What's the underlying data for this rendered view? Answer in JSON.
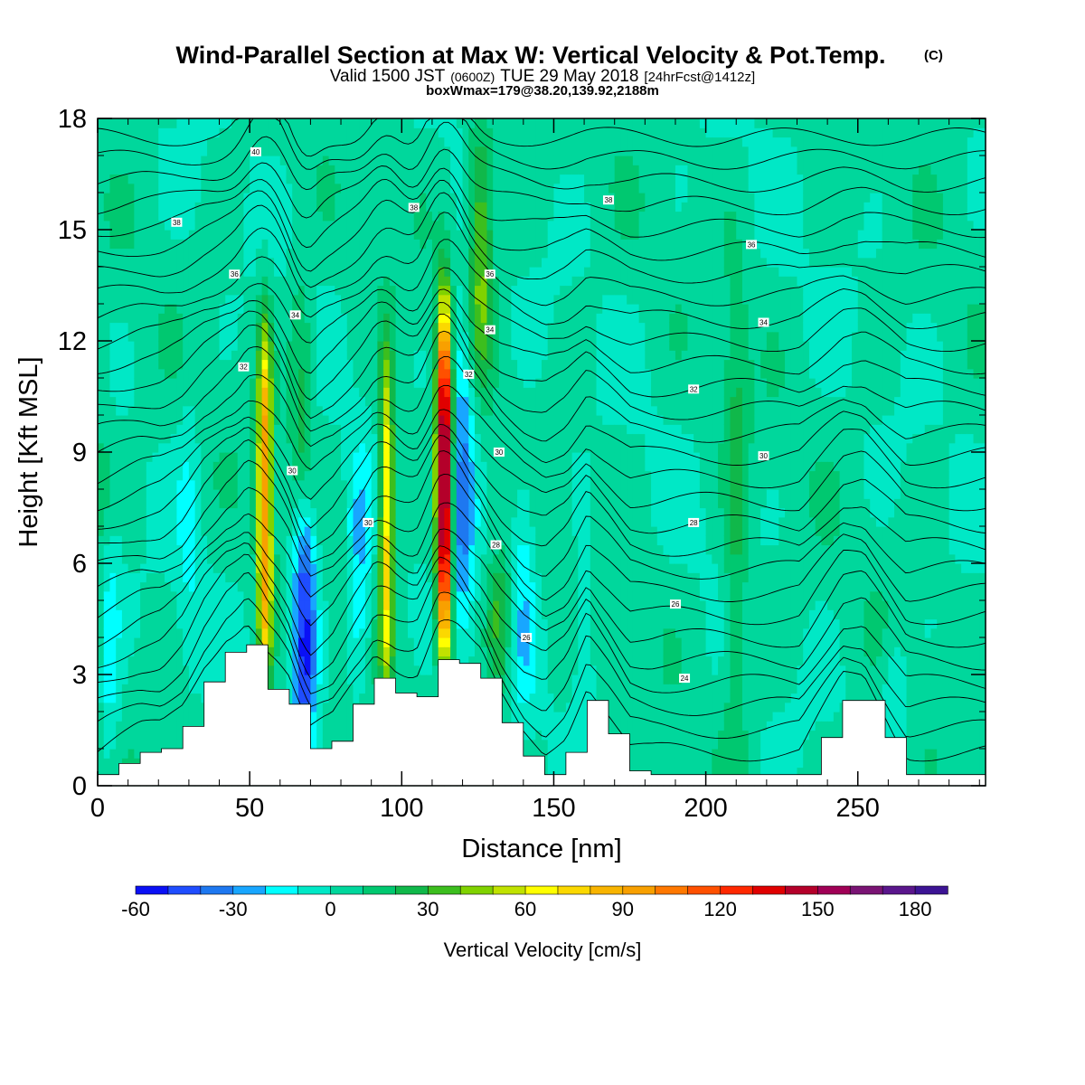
{
  "header": {
    "title": "Wind-Parallel Section at Max W: Vertical Velocity & Pot.Temp.",
    "title_suffix": "(C)",
    "valid_a": "Valid 1500 JST",
    "valid_b": "(0600Z)",
    "valid_c": "TUE 29 May 2018",
    "valid_d": "[24hrFcst@1412z]",
    "box": "boxWmax=179@38.20,139.92,2188m"
  },
  "chart_data": {
    "type": "heatmap",
    "xlabel": "Distance [nm]",
    "ylabel": "Height [Kft MSL]",
    "xlim": [
      0,
      292
    ],
    "ylim": [
      0,
      18
    ],
    "x_ticks": [
      "0",
      "50",
      "100",
      "150",
      "200",
      "250"
    ],
    "y_ticks": [
      "0",
      "3",
      "6",
      "9",
      "12",
      "15",
      "18"
    ],
    "colorbar": {
      "title": "Vertical Velocity [cm/s]",
      "tick_labels": [
        "-60",
        "-30",
        "0",
        "30",
        "60",
        "90",
        "120",
        "150",
        "180"
      ],
      "bounds": [
        -60,
        190
      ],
      "step": 10,
      "colors": [
        "#0a10f5",
        "#1f4dff",
        "#1e78f0",
        "#18a6ff",
        "#00ffff",
        "#00e8c6",
        "#00d79c",
        "#00c870",
        "#10b84a",
        "#3cbe1e",
        "#80d200",
        "#c0e200",
        "#ffff00",
        "#fbd800",
        "#f8b400",
        "#f8a000",
        "#ff7800",
        "#ff5000",
        "#ff2800",
        "#e00000",
        "#b4002a",
        "#a00056",
        "#7a1474",
        "#5a168c",
        "#3c1494"
      ]
    },
    "background_w": 3,
    "updrafts": [
      {
        "x": 55,
        "zmin": 2.5,
        "zmax": 12.4,
        "w": 95
      },
      {
        "x": 95,
        "zmin": 2.5,
        "zmax": 11.8,
        "w": 72
      },
      {
        "x": 114,
        "zmin": 3.5,
        "zmax": 12.9,
        "w": 175
      },
      {
        "x": 132,
        "zmin": 2.5,
        "zmax": 6.2,
        "w": 32
      },
      {
        "x": 126,
        "zmin": 11,
        "zmax": 18,
        "w": 40
      },
      {
        "x": 67,
        "zmin": 6,
        "zmax": 14,
        "w": 22
      },
      {
        "x": 1,
        "zmin": 0.3,
        "zmax": 10,
        "w": 20
      },
      {
        "x": 210,
        "zmin": 0.5,
        "zmax": 14,
        "w": 20
      }
    ],
    "downdrafts": [
      {
        "x": 68,
        "zmin": 1,
        "zmax": 8,
        "w": -58
      },
      {
        "x": 86,
        "zmin": 2.5,
        "zmax": 9,
        "w": -25
      },
      {
        "x": 120,
        "zmin": 4,
        "zmax": 13,
        "w": -35
      },
      {
        "x": 140,
        "zmin": 2,
        "zmax": 9,
        "w": -20
      },
      {
        "x": 3,
        "zmin": 0.5,
        "zmax": 7,
        "w": -32
      },
      {
        "x": 30,
        "zmin": 3,
        "zmax": 11,
        "w": -12
      },
      {
        "x": 160,
        "zmin": 1,
        "zmax": 7,
        "w": -12
      },
      {
        "x": 262,
        "zmin": 0.8,
        "zmax": 4,
        "w": -15
      }
    ],
    "terrain_x": [
      0,
      7,
      14,
      21,
      28,
      35,
      42,
      49,
      56,
      63,
      70,
      77,
      84,
      91,
      98,
      105,
      112,
      119,
      126,
      133,
      140,
      147,
      154,
      161,
      168,
      175,
      182,
      189,
      196,
      203,
      210,
      217,
      224,
      231,
      238,
      245,
      252,
      259,
      266,
      273,
      280,
      292
    ],
    "terrain_z": [
      0.3,
      0.6,
      0.9,
      1.0,
      1.6,
      2.8,
      3.6,
      3.8,
      2.6,
      2.2,
      1.0,
      1.2,
      2.2,
      2.9,
      2.5,
      2.4,
      3.4,
      3.3,
      2.9,
      1.7,
      0.8,
      0.3,
      0.9,
      2.3,
      1.4,
      0.4,
      0.3,
      0.3,
      0.3,
      0.3,
      0.3,
      0.3,
      0.3,
      0.3,
      1.3,
      2.3,
      2.3,
      1.3,
      0.3,
      0.3,
      0.3,
      0.3
    ],
    "isentropes": {
      "theta_base_surface": 18,
      "step": 1,
      "count": 28,
      "lifts": [
        {
          "x": 55,
          "amp": 1.2,
          "width": 8
        },
        {
          "x": 114,
          "amp": 1.5,
          "width": 8
        },
        {
          "x": 95,
          "amp": 0.8,
          "width": 7
        },
        {
          "x": 68,
          "amp": -0.6,
          "width": 6
        }
      ],
      "labels": [
        {
          "text": "40",
          "x": 52,
          "z": 17.1
        },
        {
          "text": "38",
          "x": 104,
          "z": 15.6
        },
        {
          "text": "38",
          "x": 168,
          "z": 15.8
        },
        {
          "text": "38",
          "x": 26,
          "z": 15.2
        },
        {
          "text": "36",
          "x": 45,
          "z": 13.8
        },
        {
          "text": "36",
          "x": 129,
          "z": 13.8
        },
        {
          "text": "36",
          "x": 215,
          "z": 14.6
        },
        {
          "text": "34",
          "x": 65,
          "z": 12.7
        },
        {
          "text": "34",
          "x": 129,
          "z": 12.3
        },
        {
          "text": "34",
          "x": 219,
          "z": 12.5
        },
        {
          "text": "32",
          "x": 48,
          "z": 11.3
        },
        {
          "text": "32",
          "x": 122,
          "z": 11.1
        },
        {
          "text": "32",
          "x": 196,
          "z": 10.7
        },
        {
          "text": "30",
          "x": 64,
          "z": 8.5
        },
        {
          "text": "30",
          "x": 132,
          "z": 9.0
        },
        {
          "text": "30",
          "x": 219,
          "z": 8.9
        },
        {
          "text": "30",
          "x": 89,
          "z": 7.1
        },
        {
          "text": "28",
          "x": 131,
          "z": 6.5
        },
        {
          "text": "28",
          "x": 196,
          "z": 7.1
        },
        {
          "text": "26",
          "x": 190,
          "z": 4.9
        },
        {
          "text": "26",
          "x": 141,
          "z": 4.0
        },
        {
          "text": "24",
          "x": 193,
          "z": 2.9
        }
      ]
    }
  }
}
